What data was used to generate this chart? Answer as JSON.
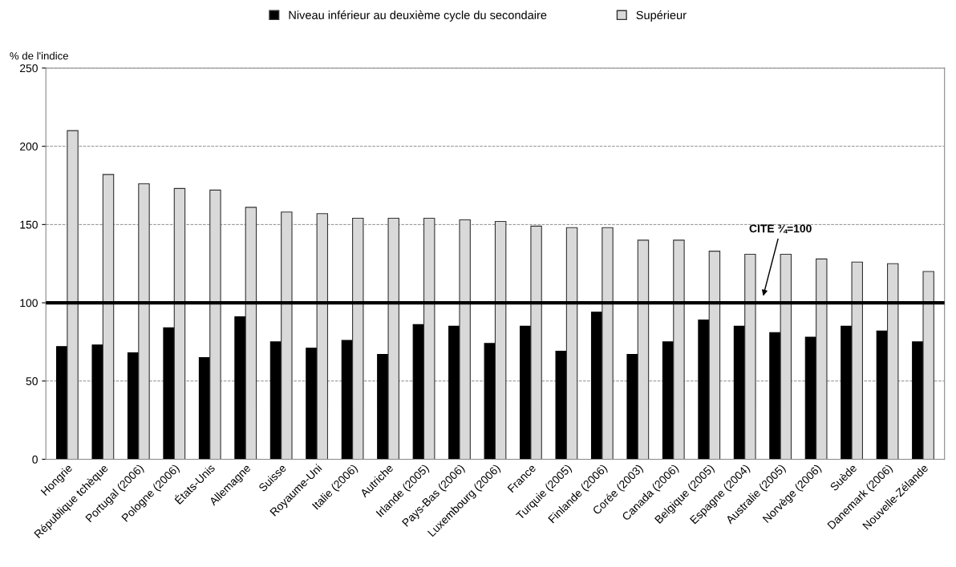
{
  "chart_data": {
    "type": "bar",
    "ylabel": "% de l'indice",
    "categories": [
      "Hongrie",
      "République tchèque",
      "Portugal (2006)",
      "Pologne (2006)",
      "États-Unis",
      "Allemagne",
      "Suisse",
      "Royaume-Uni",
      "Italie (2006)",
      "Autriche",
      "Irlande (2005)",
      "Pays-Bas (2006)",
      "Luxembourg (2006)",
      "France",
      "Turquie (2005)",
      "Finlande (2006)",
      "Corée (2003)",
      "Canada (2006)",
      "Belgique (2005)",
      "Espagne (2004)",
      "Australie (2005)",
      "Norvège (2006)",
      "Suède",
      "Danemark (2006)",
      "Nouvelle-Zélande"
    ],
    "series": [
      {
        "name": "Niveau inférieur au deuxième cycle du secondaire",
        "color": "#000000",
        "values": [
          72,
          73,
          68,
          84,
          65,
          91,
          75,
          71,
          76,
          67,
          86,
          85,
          74,
          85,
          69,
          94,
          67,
          75,
          89,
          85,
          81,
          78,
          85,
          82,
          75
        ]
      },
      {
        "name": "Supérieur",
        "color": "#d9d9d9",
        "values": [
          210,
          182,
          176,
          173,
          172,
          161,
          158,
          157,
          154,
          154,
          154,
          153,
          152,
          149,
          148,
          148,
          140,
          140,
          133,
          131,
          131,
          128,
          126,
          125,
          120
        ]
      }
    ],
    "ylim": [
      0,
      250
    ],
    "yticks": [
      0,
      50,
      100,
      150,
      200,
      250
    ],
    "grid": "y",
    "legend": "top",
    "ref_lines": [
      {
        "axis": "y",
        "value": 100,
        "label": "CITE ¾=100",
        "color": "#000000",
        "line_style": "solid"
      }
    ]
  }
}
